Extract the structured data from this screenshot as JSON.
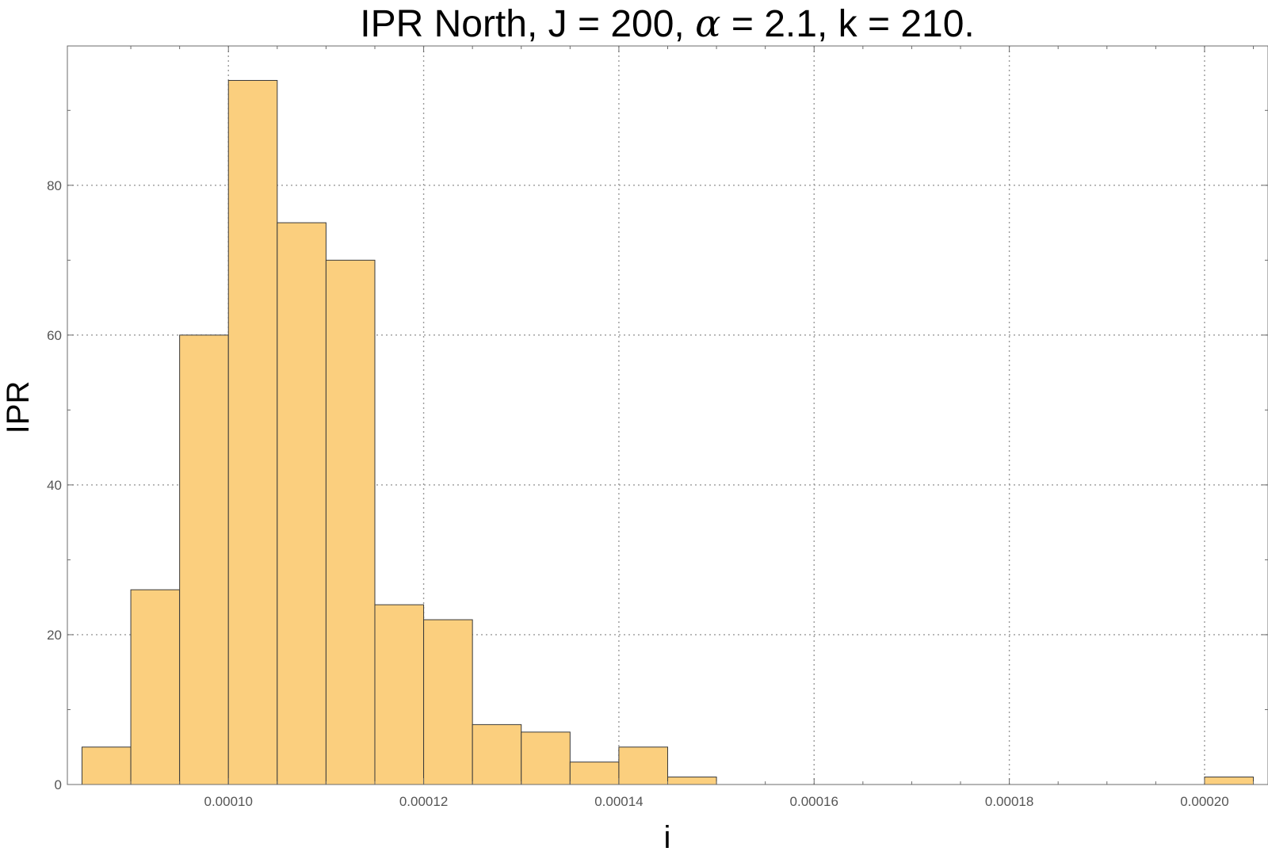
{
  "chart_data": {
    "type": "bar",
    "title_parts": [
      "IPR North, J = 200, ",
      "α",
      " = 2.1, k = 210."
    ],
    "xlabel": "i",
    "ylabel": "IPR",
    "xlim": [
      8.35e-05,
      0.0002065
    ],
    "ylim": [
      0,
      98.6
    ],
    "grid": true,
    "bin_width": 5e-06,
    "bins": [
      {
        "start": 8.5e-05,
        "end": 9e-05,
        "value": 5
      },
      {
        "start": 9e-05,
        "end": 9.5e-05,
        "value": 26
      },
      {
        "start": 9.5e-05,
        "end": 0.0001,
        "value": 60
      },
      {
        "start": 0.0001,
        "end": 0.000105,
        "value": 94
      },
      {
        "start": 0.000105,
        "end": 0.00011,
        "value": 75
      },
      {
        "start": 0.00011,
        "end": 0.000115,
        "value": 70
      },
      {
        "start": 0.000115,
        "end": 0.00012,
        "value": 24
      },
      {
        "start": 0.00012,
        "end": 0.000125,
        "value": 22
      },
      {
        "start": 0.000125,
        "end": 0.00013,
        "value": 8
      },
      {
        "start": 0.00013,
        "end": 0.000135,
        "value": 7
      },
      {
        "start": 0.000135,
        "end": 0.00014,
        "value": 3
      },
      {
        "start": 0.00014,
        "end": 0.000145,
        "value": 5
      },
      {
        "start": 0.000145,
        "end": 0.00015,
        "value": 1
      },
      {
        "start": 0.0002,
        "end": 0.000205,
        "value": 1
      }
    ],
    "x_ticks": [
      {
        "value": 0.0001,
        "label": "0.00010"
      },
      {
        "value": 0.00012,
        "label": "0.00012"
      },
      {
        "value": 0.00014,
        "label": "0.00014"
      },
      {
        "value": 0.00016,
        "label": "0.00016"
      },
      {
        "value": 0.00018,
        "label": "0.00018"
      },
      {
        "value": 0.0002,
        "label": "0.00020"
      }
    ],
    "y_ticks": [
      {
        "value": 0,
        "label": "0"
      },
      {
        "value": 20,
        "label": "20"
      },
      {
        "value": 40,
        "label": "40"
      },
      {
        "value": 60,
        "label": "60"
      },
      {
        "value": 80,
        "label": "80"
      }
    ],
    "colors": {
      "bar_fill": "#fbcf7e",
      "bar_edge": "#3a3a3a",
      "grid": "#9a9a9a",
      "frame": "#6b6b6b"
    }
  }
}
